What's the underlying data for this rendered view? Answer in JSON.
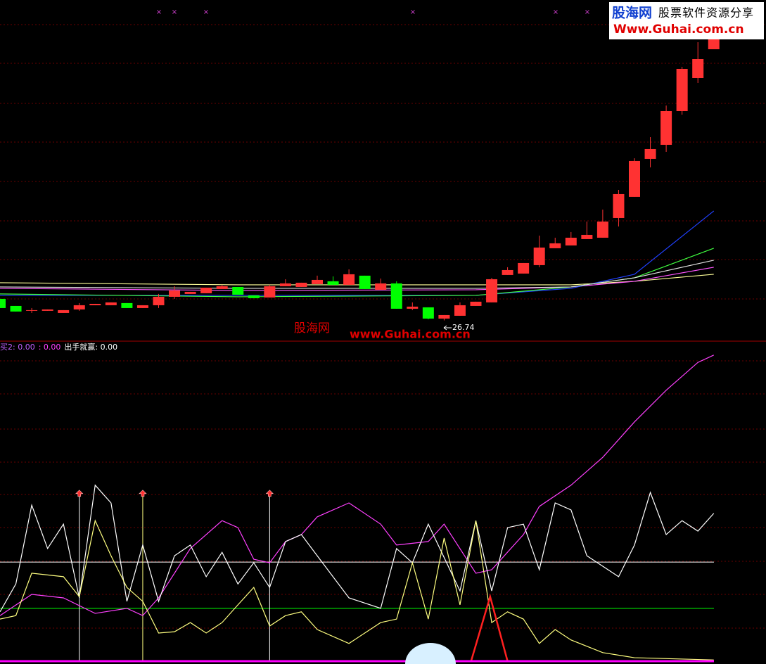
{
  "logo": {
    "name": "股海网",
    "slogan": "股票软件资源分享",
    "url": "Www.Guhai.com.cn"
  },
  "watermark": {
    "name": "股海网",
    "url": "www.Guhai.com.cn"
  },
  "chart_data": [
    {
      "type": "candlestick",
      "ylim": [
        22,
        100
      ],
      "grid": true,
      "up_color": "#ff3232",
      "down_color": "#00ff00",
      "open": [
        31.66,
        30.05,
        28.93,
        28.93,
        28.44,
        29.25,
        30.21,
        30.21,
        30.7,
        29.57,
        30.21,
        32.14,
        32.79,
        32.95,
        33.91,
        34.39,
        32.46,
        31.98,
        34.55,
        34.39,
        35.04,
        35.68,
        34.88,
        36.97,
        33.75,
        35.2,
        29.41,
        29.73,
        27.16,
        27.8,
        30.05,
        30.86,
        37.13,
        37.45,
        39.38,
        43.24,
        43.88,
        45.33,
        45.65,
        50.15,
        54.98,
        63.66,
        66.88,
        74.59,
        82.15,
        88.74
      ],
      "high": [
        31.66,
        30.05,
        29.57,
        29.25,
        29.09,
        30.7,
        30.53,
        30.86,
        30.7,
        30.21,
        32.79,
        34.55,
        33.27,
        34.23,
        34.88,
        34.39,
        32.46,
        34.88,
        36.16,
        35.36,
        36.97,
        36.81,
        38.41,
        36.97,
        36.32,
        35.68,
        30.86,
        29.73,
        27.96,
        30.86,
        31.02,
        36.48,
        38.9,
        39.86,
        46.13,
        45.65,
        46.94,
        49.35,
        52.08,
        56.58,
        63.82,
        68.64,
        75.88,
        84.72,
        90.35,
        93.57
      ],
      "low": [
        29.57,
        28.77,
        28.44,
        28.93,
        28.44,
        28.93,
        30.21,
        30.21,
        29.57,
        29.57,
        29.57,
        31.66,
        32.79,
        32.95,
        33.91,
        32.62,
        31.82,
        31.98,
        34.55,
        34.39,
        35.04,
        34.88,
        34.88,
        33.91,
        33.75,
        29.41,
        29.09,
        27.0,
        26.74,
        27.8,
        30.05,
        30.86,
        37.13,
        37.45,
        38.9,
        43.24,
        43.88,
        45.33,
        45.65,
        48.22,
        54.98,
        61.73,
        65.27,
        73.79,
        81.03,
        88.74
      ],
      "close": [
        29.57,
        28.77,
        29.09,
        29.25,
        29.09,
        30.21,
        30.53,
        30.86,
        29.57,
        30.21,
        32.14,
        33.59,
        33.27,
        34.23,
        34.55,
        32.62,
        31.82,
        34.55,
        35.2,
        35.36,
        36.0,
        34.88,
        37.29,
        33.91,
        35.2,
        29.41,
        29.89,
        27.16,
        27.96,
        30.21,
        31.02,
        36.16,
        38.25,
        39.86,
        43.4,
        44.36,
        45.65,
        46.29,
        49.35,
        55.62,
        63.18,
        65.91,
        74.59,
        84.24,
        86.49,
        91.16
      ],
      "overlays": [
        {
          "color": "#ffff99",
          "x": [
            0,
            15,
            30,
            36,
            40,
            45
          ],
          "values": [
            35.36,
            34.88,
            34.88,
            34.88,
            35.68,
            37.29
          ]
        },
        {
          "color": "#ff55ff",
          "x": [
            0,
            15,
            30,
            36,
            40,
            45
          ],
          "values": [
            34.07,
            33.59,
            33.75,
            34.39,
            35.68,
            38.9
          ]
        },
        {
          "color": "#2040ff",
          "x": [
            0,
            15,
            30,
            36,
            40,
            45
          ],
          "values": [
            32.46,
            32.46,
            32.46,
            34.07,
            37.29,
            51.76
          ]
        },
        {
          "color": "#40ff40",
          "x": [
            0,
            15,
            30,
            36,
            40,
            45
          ],
          "values": [
            32.79,
            32.14,
            32.46,
            34.39,
            36.48,
            43.24
          ]
        },
        {
          "color": "#e0e0e0",
          "x": [
            0,
            15,
            30,
            36,
            40,
            45
          ],
          "values": [
            34.39,
            34.07,
            34.07,
            34.39,
            36.48,
            40.5
          ]
        }
      ]
    },
    {
      "type": "line",
      "ylim": [
        0,
        100
      ],
      "legend": [
        {
          "text": "买2: 0.00",
          "color": "#c060ff"
        },
        {
          "text": ": 0.00",
          "color": "#ff40ff"
        },
        {
          "text": "出手就赢: 0.00",
          "color": "#ffffff"
        }
      ],
      "series": [
        {
          "color": "#ff40ff",
          "x": [
            0,
            2,
            4,
            6,
            8,
            9,
            10,
            12,
            14,
            15,
            16,
            17,
            18,
            19,
            20,
            22,
            24,
            25,
            27,
            28,
            30,
            31,
            33,
            34,
            36,
            38,
            40,
            42,
            44,
            45
          ],
          "values": [
            14.4,
            21.1,
            20.0,
            15.1,
            16.7,
            14.4,
            20.0,
            35.6,
            44.4,
            42.2,
            32.2,
            31.1,
            37.8,
            40.0,
            45.6,
            50.0,
            43.3,
            36.7,
            37.8,
            43.3,
            27.8,
            28.9,
            40.0,
            48.9,
            55.6,
            64.4,
            75.6,
            85.6,
            94.4,
            96.7
          ]
        },
        {
          "color": "#ffffff",
          "x": [
            0,
            1,
            2,
            3,
            4,
            5,
            6,
            7,
            8,
            9,
            10,
            11,
            12,
            13,
            14,
            15,
            16,
            17,
            18,
            19,
            20,
            22,
            24,
            25,
            26,
            27,
            29,
            30,
            31,
            32,
            33,
            34,
            35,
            36,
            37,
            39,
            40,
            41,
            42,
            43,
            44,
            45
          ],
          "values": [
            15.6,
            24.4,
            49.3,
            35.6,
            43.3,
            20.0,
            55.6,
            50.0,
            18.9,
            36.7,
            18.9,
            33.3,
            36.7,
            26.7,
            34.4,
            24.4,
            31.1,
            23.3,
            37.8,
            40.0,
            33.3,
            20.0,
            16.7,
            35.6,
            31.1,
            43.3,
            22.2,
            44.4,
            22.2,
            42.2,
            43.3,
            28.9,
            50.0,
            47.8,
            33.3,
            26.7,
            36.7,
            53.3,
            40.0,
            44.4,
            41.1,
            46.7
          ]
        },
        {
          "color": "#ffff80",
          "x": [
            0,
            1,
            2,
            4,
            5,
            6,
            7,
            8,
            9,
            10,
            11,
            12,
            13,
            14,
            15,
            16,
            17,
            18,
            19,
            20,
            22,
            24,
            25,
            26,
            27,
            28,
            29,
            30,
            31,
            32,
            33,
            34,
            35,
            36,
            38,
            40,
            45
          ],
          "values": [
            13.3,
            14.4,
            27.8,
            26.7,
            20.4,
            44.4,
            33.3,
            23.3,
            18.9,
            8.9,
            9.3,
            12.2,
            8.9,
            12.2,
            17.8,
            23.3,
            11.1,
            14.4,
            15.6,
            10.0,
            5.6,
            12.2,
            13.3,
            31.1,
            13.3,
            38.9,
            17.8,
            44.4,
            12.2,
            15.6,
            13.3,
            5.6,
            10.0,
            6.7,
            2.7,
            1.1,
            0.4
          ]
        },
        {
          "color": "#ff2020",
          "x": [
            29.7,
            30.9,
            32
          ],
          "values": [
            0,
            20.4,
            0
          ]
        }
      ],
      "levels": [
        {
          "value": 31.3,
          "color": "#ffffff"
        },
        {
          "value": 16.7,
          "color": "#00ff00"
        }
      ],
      "signals": {
        "x": [
          5,
          9,
          17
        ],
        "colors": [
          "#ffffff",
          "#ffff80",
          "#ffffff"
        ],
        "value": 52.7,
        "arrow_color": "#ff3030"
      },
      "baseline_color": "#ff00ff"
    }
  ]
}
